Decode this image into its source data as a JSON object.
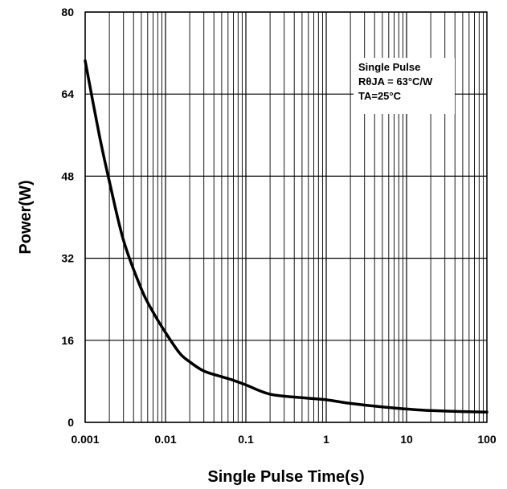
{
  "chart_data": {
    "type": "line",
    "title": "",
    "xlabel": "Single Pulse Time(s)",
    "ylabel": "Power(W)",
    "x_scale": "log",
    "xlim": [
      0.001,
      100
    ],
    "ylim": [
      0,
      80
    ],
    "x_ticks": [
      "0.001",
      "0.01",
      "0.1",
      "1",
      "10",
      "100"
    ],
    "y_ticks": [
      "0",
      "16",
      "32",
      "48",
      "64",
      "80"
    ],
    "grid": true,
    "annotation": {
      "lines": [
        "Single Pulse",
        "RθJA = 63°C/W",
        "TA=25°C"
      ],
      "placement": "top-right"
    },
    "series": [
      {
        "x": [
          0.001,
          0.0015,
          0.002,
          0.003,
          0.005,
          0.007,
          0.01,
          0.015,
          0.02,
          0.03,
          0.05,
          0.07,
          0.1,
          0.2,
          0.5,
          1,
          2,
          5,
          10,
          20,
          50,
          100
        ],
        "y": [
          70.5,
          56,
          47,
          35.5,
          26,
          21.5,
          17.5,
          13.5,
          11.8,
          10,
          8.9,
          8.2,
          7.3,
          5.5,
          4.8,
          4.4,
          3.7,
          3,
          2.6,
          2.3,
          2.1,
          2.0
        ]
      }
    ]
  }
}
